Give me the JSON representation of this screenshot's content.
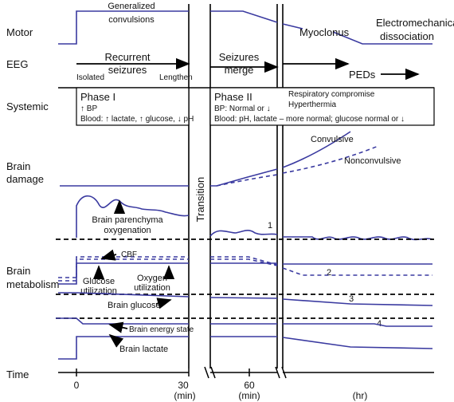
{
  "rows": {
    "motor": "Motor",
    "eeg": "EEG",
    "systemic": "Systemic",
    "brain_damage_1": "Brain",
    "brain_damage_2": "damage",
    "brain_metabolism_1": "Brain",
    "brain_metabolism_2": "metabolism",
    "time": "Time"
  },
  "motor": {
    "generalized_1": "Generalized",
    "generalized_2": "convulsions",
    "myoclonus": "Myoclonus",
    "electromech_1": "Electromechanical",
    "electromech_2": "dissociation"
  },
  "eeg": {
    "recurrent_1": "Recurrent",
    "recurrent_2": "seizures",
    "isolated": "Isolated",
    "lengthen": "Lengthen",
    "seizures_merge_1": "Seizures",
    "seizures_merge_2": "merge",
    "peds": "PEDs"
  },
  "systemic": {
    "phase1_title": "Phase I",
    "phase1_bp": "↑ BP",
    "phase1_blood": "Blood: ↑ lactate, ↑ glucose, ↓ pH",
    "phase2_title": "Phase II",
    "phase2_bp": "BP: Normal or ↓",
    "phase2_blood": "Blood: pH, lactate – more normal; glucose normal or ↓",
    "resp": "Respiratory compromise",
    "hyperthermia": "Hyperthermia"
  },
  "damage": {
    "convulsive": "Convulsive",
    "nonconvulsive": "Nonconvulsive"
  },
  "transition": "Transition",
  "metabolism": {
    "parenchyma_1": "Brain parenchyma",
    "parenchyma_2": "oxygenation",
    "cbf": "CBF",
    "glucose_util_1": "Glucose",
    "glucose_util_2": "utilization",
    "oxygen_util_1": "Oxygen",
    "oxygen_util_2": "utilization",
    "brain_glucose": "Brain glucose",
    "energy_state": "Brain energy state",
    "brain_lactate": "Brain lactate",
    "n1": "1",
    "n2": "2",
    "n3": "3",
    "n4": "4"
  },
  "time_axis": {
    "t0": "0",
    "t30": "30",
    "t60": "60",
    "min_a": "(min)",
    "min_b": "(min)",
    "hr": "(hr)"
  },
  "colors": {
    "curve": "#3a3aa0",
    "line": "#000000"
  }
}
